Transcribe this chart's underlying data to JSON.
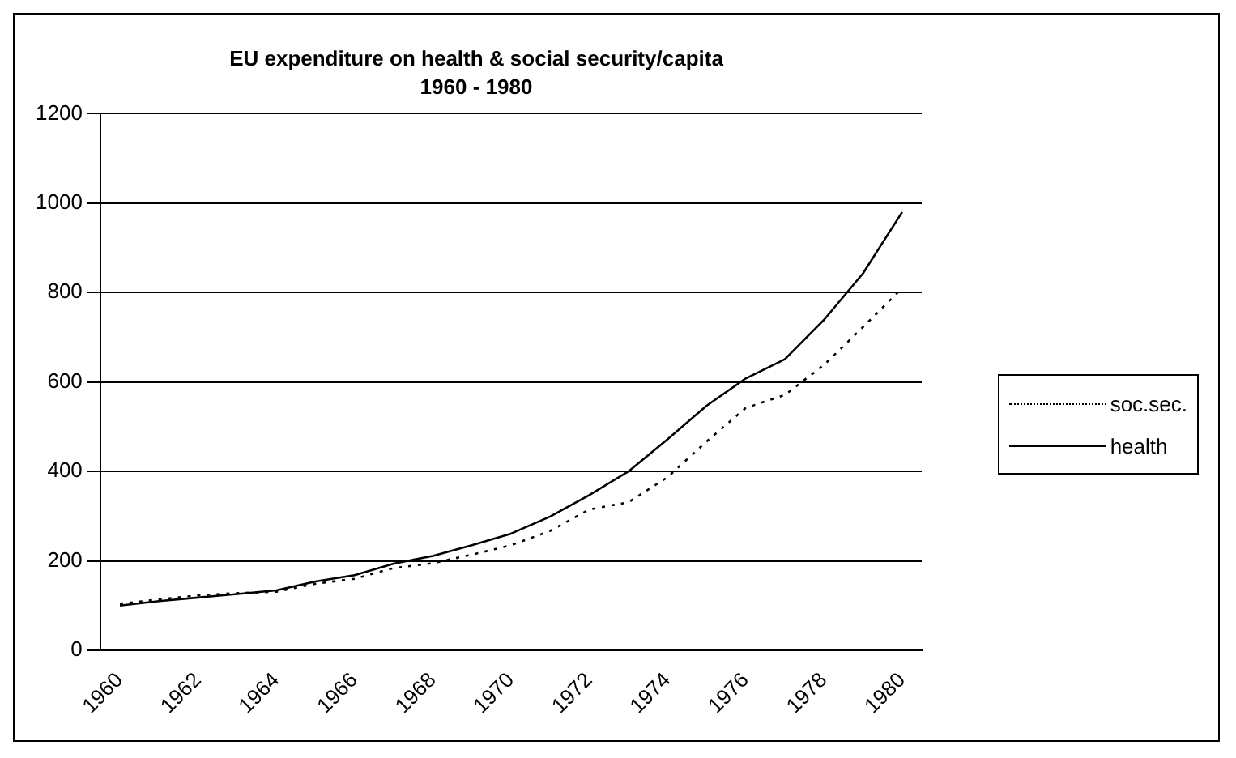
{
  "chart_data": {
    "type": "line",
    "title": "EU expenditure on health & social security/capita",
    "subtitle": "1960 - 1980",
    "categories": [
      "1960",
      null,
      "1962",
      null,
      "1964",
      null,
      "1966",
      null,
      "1968",
      null,
      "1970",
      null,
      "1972",
      null,
      "1974",
      null,
      "1976",
      null,
      "1978",
      null,
      "1980"
    ],
    "series": [
      {
        "name": "soc.sec.",
        "color": "#000000",
        "line_style": "dotted",
        "values": [
          104,
          114,
          123,
          128,
          131,
          149,
          160,
          184,
          195,
          214,
          235,
          267,
          315,
          331,
          387,
          467,
          542,
          571,
          638,
          723,
          810
        ]
      },
      {
        "name": "health",
        "color": "#000000",
        "line_style": "solid",
        "values": [
          100,
          110,
          118,
          126,
          134,
          154,
          168,
          194,
          211,
          235,
          261,
          299,
          347,
          400,
          472,
          547,
          608,
          651,
          739,
          843,
          980
        ]
      }
    ],
    "ylim": [
      0,
      1200
    ],
    "yticks": [
      0,
      200,
      400,
      600,
      800,
      1000,
      1200
    ],
    "grid": "y",
    "legend": "right",
    "marker": "none"
  }
}
